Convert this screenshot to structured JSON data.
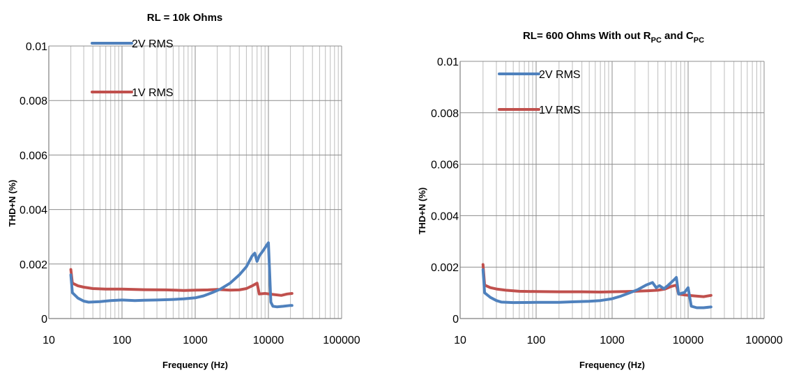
{
  "chart_data": [
    {
      "type": "line",
      "title": "RL = 10k Ohms",
      "xlabel": "Frequency (Hz)",
      "ylabel": "THD+N (%)",
      "x_scale": "log",
      "xlim": [
        10,
        100000
      ],
      "ylim": [
        0,
        0.01
      ],
      "x_ticks": [
        "10",
        "100",
        "1000",
        "10000",
        "100000"
      ],
      "y_ticks": [
        "0",
        "0.002",
        "0.004",
        "0.006",
        "0.008",
        "0.01"
      ],
      "grid": true,
      "legend_position": "top-left",
      "series": [
        {
          "name": "2V RMS",
          "color": "#4f81bd",
          "points": [
            [
              20,
              0.0016
            ],
            [
              21,
              0.00095
            ],
            [
              25,
              0.00075
            ],
            [
              30,
              0.00064
            ],
            [
              35,
              0.0006
            ],
            [
              50,
              0.00062
            ],
            [
              70,
              0.00066
            ],
            [
              100,
              0.00068
            ],
            [
              150,
              0.00066
            ],
            [
              200,
              0.00067
            ],
            [
              300,
              0.00068
            ],
            [
              500,
              0.0007
            ],
            [
              700,
              0.00072
            ],
            [
              1000,
              0.00076
            ],
            [
              1300,
              0.00083
            ],
            [
              1700,
              0.00095
            ],
            [
              2200,
              0.00108
            ],
            [
              3000,
              0.0013
            ],
            [
              4000,
              0.0016
            ],
            [
              5000,
              0.0019
            ],
            [
              6000,
              0.0023
            ],
            [
              6500,
              0.0024
            ],
            [
              7000,
              0.0021
            ],
            [
              7500,
              0.0023
            ],
            [
              8500,
              0.0025
            ],
            [
              9500,
              0.0027
            ],
            [
              10000,
              0.00278
            ],
            [
              10800,
              0.0006
            ],
            [
              11500,
              0.00045
            ],
            [
              13000,
              0.00043
            ],
            [
              16000,
              0.00045
            ],
            [
              20000,
              0.00048
            ],
            [
              21000,
              0.00048
            ]
          ]
        },
        {
          "name": "1V RMS",
          "color": "#c0504d",
          "points": [
            [
              20,
              0.0018
            ],
            [
              21,
              0.0013
            ],
            [
              25,
              0.0012
            ],
            [
              30,
              0.00115
            ],
            [
              40,
              0.0011
            ],
            [
              60,
              0.00108
            ],
            [
              100,
              0.00108
            ],
            [
              200,
              0.00106
            ],
            [
              400,
              0.00105
            ],
            [
              700,
              0.00103
            ],
            [
              1000,
              0.00104
            ],
            [
              1500,
              0.00105
            ],
            [
              2000,
              0.00107
            ],
            [
              3000,
              0.00104
            ],
            [
              4000,
              0.00105
            ],
            [
              5000,
              0.0011
            ],
            [
              6000,
              0.0012
            ],
            [
              7000,
              0.0013
            ],
            [
              7500,
              0.0009
            ],
            [
              9000,
              0.00092
            ],
            [
              12000,
              0.00088
            ],
            [
              15000,
              0.00085
            ],
            [
              18000,
              0.0009
            ],
            [
              21000,
              0.00092
            ]
          ]
        }
      ]
    },
    {
      "type": "line",
      "title_parts": [
        "RL= 600 Ohms  With out R",
        "PC",
        " and C",
        "PC"
      ],
      "xlabel": "Frequency (Hz)",
      "ylabel": "THD+N (%)",
      "x_scale": "log",
      "xlim": [
        10,
        100000
      ],
      "ylim": [
        0,
        0.01
      ],
      "x_ticks": [
        "10",
        "100",
        "1000",
        "10000",
        "100000"
      ],
      "y_ticks": [
        "0",
        "0.002",
        "0.004",
        "0.006",
        "0.008",
        "0.01"
      ],
      "grid": true,
      "legend_position": "top-left",
      "series": [
        {
          "name": "2V RMS",
          "color": "#4f81bd",
          "points": [
            [
              20,
              0.0019
            ],
            [
              21,
              0.001
            ],
            [
              25,
              0.00082
            ],
            [
              30,
              0.0007
            ],
            [
              35,
              0.00064
            ],
            [
              50,
              0.00062
            ],
            [
              100,
              0.00063
            ],
            [
              200,
              0.00063
            ],
            [
              300,
              0.00065
            ],
            [
              500,
              0.00067
            ],
            [
              700,
              0.0007
            ],
            [
              1000,
              0.00077
            ],
            [
              1300,
              0.00087
            ],
            [
              1700,
              0.001
            ],
            [
              2200,
              0.00113
            ],
            [
              2800,
              0.0013
            ],
            [
              3400,
              0.0014
            ],
            [
              3800,
              0.0012
            ],
            [
              4200,
              0.00128
            ],
            [
              4800,
              0.00116
            ],
            [
              5500,
              0.0013
            ],
            [
              6500,
              0.0015
            ],
            [
              7000,
              0.0016
            ],
            [
              7500,
              0.00095
            ],
            [
              9000,
              0.00102
            ],
            [
              10000,
              0.0012
            ],
            [
              11000,
              0.00048
            ],
            [
              13000,
              0.00042
            ],
            [
              16000,
              0.00042
            ],
            [
              20000,
              0.00045
            ]
          ]
        },
        {
          "name": "1V RMS",
          "color": "#c0504d",
          "points": [
            [
              20,
              0.0021
            ],
            [
              21,
              0.0013
            ],
            [
              25,
              0.0012
            ],
            [
              30,
              0.00115
            ],
            [
              40,
              0.0011
            ],
            [
              60,
              0.00106
            ],
            [
              100,
              0.00105
            ],
            [
              200,
              0.00104
            ],
            [
              400,
              0.00104
            ],
            [
              700,
              0.00103
            ],
            [
              1000,
              0.00104
            ],
            [
              1500,
              0.00105
            ],
            [
              2000,
              0.00106
            ],
            [
              3000,
              0.00108
            ],
            [
              4000,
              0.0011
            ],
            [
              5000,
              0.00115
            ],
            [
              6000,
              0.00125
            ],
            [
              7000,
              0.0013
            ],
            [
              7500,
              0.00095
            ],
            [
              9000,
              0.00092
            ],
            [
              12000,
              0.00088
            ],
            [
              16000,
              0.00085
            ],
            [
              20000,
              0.0009
            ]
          ]
        }
      ]
    }
  ]
}
